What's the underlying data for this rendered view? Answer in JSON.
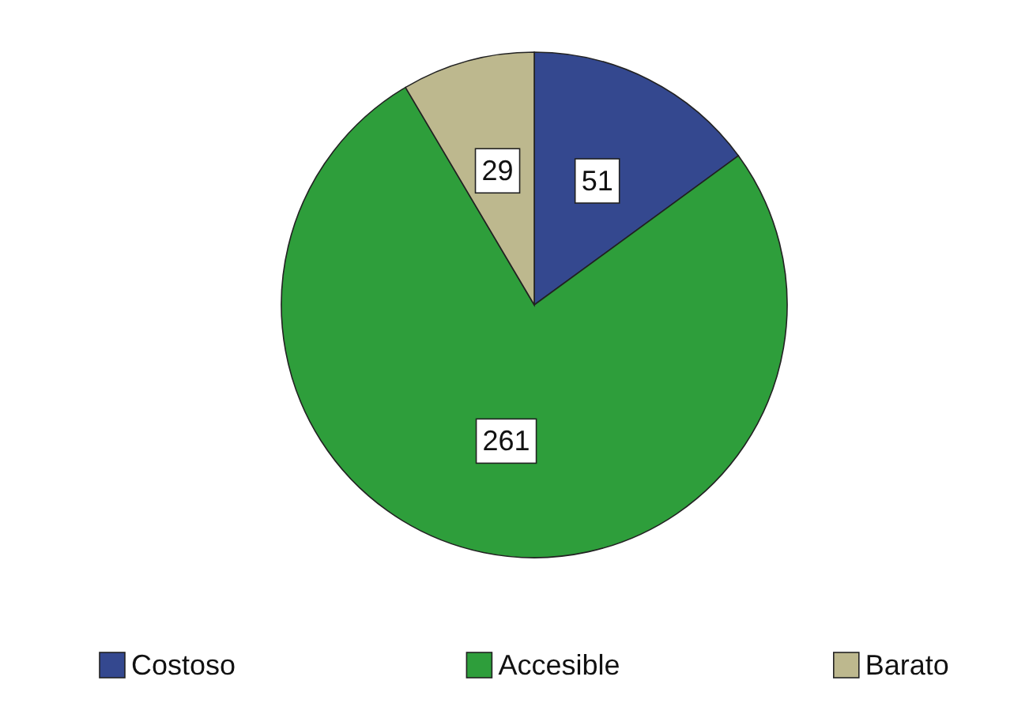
{
  "chart_data": {
    "type": "pie",
    "categories": [
      "Costoso",
      "Accesible",
      "Barato"
    ],
    "values": [
      51,
      261,
      29
    ],
    "colors": [
      "#34488f",
      "#2e9e3b",
      "#bdb88e"
    ],
    "data_labels": true,
    "legend": "bottom"
  }
}
